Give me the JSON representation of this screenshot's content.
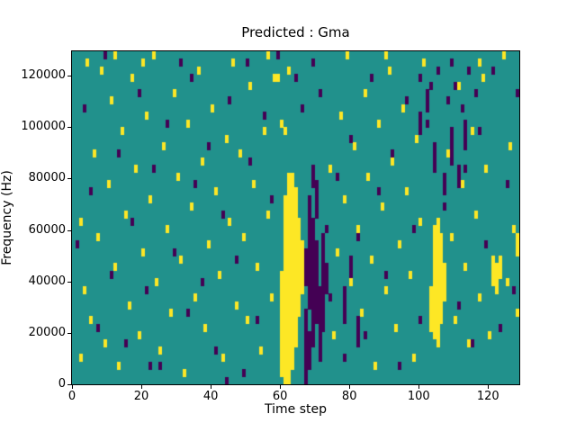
{
  "chart_data": {
    "type": "heatmap",
    "title": "Predicted : Gma",
    "xlabel": "Time step",
    "ylabel": "Frequency (Hz)",
    "legend": "none",
    "grid_lines": false,
    "x_range": [
      0,
      129
    ],
    "y_range_hz": [
      0,
      129500
    ],
    "x_tick_labels": [
      "0",
      "20",
      "40",
      "60",
      "80",
      "100",
      "120"
    ],
    "x_tick_values": [
      0,
      20,
      40,
      60,
      80,
      100,
      120
    ],
    "y_tick_labels": [
      "0",
      "20000",
      "40000",
      "60000",
      "80000",
      "100000",
      "120000"
    ],
    "y_tick_values": [
      0,
      20000,
      40000,
      60000,
      80000,
      100000,
      120000
    ],
    "grid": {
      "cols": 129,
      "rows": 44,
      "row_height_hz": 2943
    },
    "colors": {
      "background": "#21918c",
      "high": "#fde725",
      "low": "#440154"
    },
    "yellow_ranges": [
      [
        60,
        1,
        14
      ],
      [
        61,
        0,
        24
      ],
      [
        62,
        0,
        27
      ],
      [
        63,
        2,
        27
      ],
      [
        64,
        5,
        25
      ],
      [
        65,
        9,
        21
      ],
      [
        66,
        12,
        18
      ],
      [
        103,
        7,
        12
      ],
      [
        104,
        6,
        20
      ],
      [
        105,
        5,
        21
      ],
      [
        106,
        8,
        19
      ],
      [
        107,
        11,
        15
      ],
      [
        121,
        13,
        16
      ],
      [
        122,
        12,
        15
      ],
      [
        123,
        14,
        16
      ],
      [
        128,
        17,
        19
      ]
    ],
    "dark_ranges": [
      [
        67,
        1,
        9
      ],
      [
        67,
        13,
        17
      ],
      [
        68,
        2,
        6
      ],
      [
        68,
        10,
        24
      ],
      [
        69,
        5,
        21
      ],
      [
        70,
        8,
        18
      ],
      [
        70,
        22,
        26
      ],
      [
        71,
        3,
        12
      ],
      [
        72,
        7,
        19
      ],
      [
        73,
        12,
        15
      ],
      [
        69,
        26,
        28
      ],
      [
        104,
        28,
        31
      ],
      [
        107,
        25,
        27
      ],
      [
        109,
        29,
        33
      ],
      [
        111,
        26,
        28
      ],
      [
        113,
        31,
        34
      ],
      [
        100,
        33,
        35
      ],
      [
        102,
        36,
        38
      ],
      [
        78,
        8,
        12
      ],
      [
        80,
        13,
        16
      ],
      [
        82,
        5,
        8
      ]
    ],
    "yellow_cells": [
      [
        2,
        3
      ],
      [
        2,
        21
      ],
      [
        3,
        12
      ],
      [
        4,
        42
      ],
      [
        5,
        8
      ],
      [
        6,
        30
      ],
      [
        7,
        19
      ],
      [
        8,
        41
      ],
      [
        9,
        5
      ],
      [
        10,
        26
      ],
      [
        11,
        37
      ],
      [
        12,
        15
      ],
      [
        13,
        2
      ],
      [
        14,
        33
      ],
      [
        15,
        22
      ],
      [
        16,
        10
      ],
      [
        17,
        40
      ],
      [
        18,
        28
      ],
      [
        19,
        6
      ],
      [
        20,
        17
      ],
      [
        21,
        35
      ],
      [
        22,
        24
      ],
      [
        23,
        43
      ],
      [
        24,
        13
      ],
      [
        25,
        4
      ],
      [
        26,
        31
      ],
      [
        27,
        20
      ],
      [
        28,
        9
      ],
      [
        29,
        38
      ],
      [
        30,
        27
      ],
      [
        31,
        16
      ],
      [
        32,
        1
      ],
      [
        33,
        34
      ],
      [
        34,
        23
      ],
      [
        35,
        11
      ],
      [
        36,
        41
      ],
      [
        37,
        29
      ],
      [
        38,
        7
      ],
      [
        39,
        18
      ],
      [
        40,
        36
      ],
      [
        41,
        25
      ],
      [
        42,
        14
      ],
      [
        43,
        3
      ],
      [
        44,
        32
      ],
      [
        45,
        21
      ],
      [
        46,
        42
      ],
      [
        47,
        10
      ],
      [
        48,
        30
      ],
      [
        49,
        19
      ],
      [
        50,
        8
      ],
      [
        51,
        39
      ],
      [
        52,
        26
      ],
      [
        53,
        15
      ],
      [
        54,
        4
      ],
      [
        55,
        33
      ],
      [
        56,
        22
      ],
      [
        57,
        11
      ],
      [
        58,
        40
      ],
      [
        74,
        28
      ],
      [
        75,
        6
      ],
      [
        76,
        17
      ],
      [
        77,
        35
      ],
      [
        78,
        24
      ],
      [
        79,
        43
      ],
      [
        80,
        13
      ],
      [
        81,
        31
      ],
      [
        82,
        20
      ],
      [
        83,
        9
      ],
      [
        84,
        38
      ],
      [
        85,
        27
      ],
      [
        86,
        16
      ],
      [
        87,
        2
      ],
      [
        88,
        34
      ],
      [
        89,
        23
      ],
      [
        90,
        12
      ],
      [
        91,
        41
      ],
      [
        92,
        29
      ],
      [
        93,
        7
      ],
      [
        94,
        18
      ],
      [
        95,
        36
      ],
      [
        96,
        25
      ],
      [
        97,
        14
      ],
      [
        98,
        3
      ],
      [
        99,
        32
      ],
      [
        100,
        21
      ],
      [
        101,
        42
      ],
      [
        108,
        30
      ],
      [
        109,
        19
      ],
      [
        110,
        8
      ],
      [
        111,
        39
      ],
      [
        112,
        26
      ],
      [
        113,
        15
      ],
      [
        114,
        5
      ],
      [
        115,
        33
      ],
      [
        116,
        22
      ],
      [
        117,
        11
      ],
      [
        118,
        40
      ],
      [
        119,
        28
      ],
      [
        120,
        6
      ],
      [
        124,
        43
      ],
      [
        125,
        13
      ],
      [
        126,
        31
      ],
      [
        127,
        20
      ],
      [
        128,
        9
      ],
      [
        60,
        34
      ],
      [
        61,
        33
      ],
      [
        59,
        40
      ],
      [
        62,
        41
      ],
      [
        12,
        43
      ],
      [
        20,
        42
      ],
      [
        56,
        43
      ],
      [
        90,
        43
      ],
      [
        117,
        42
      ]
    ],
    "dark_cells": [
      [
        1,
        18
      ],
      [
        3,
        36
      ],
      [
        5,
        25
      ],
      [
        7,
        7
      ],
      [
        9,
        43
      ],
      [
        11,
        14
      ],
      [
        13,
        30
      ],
      [
        15,
        5
      ],
      [
        17,
        21
      ],
      [
        19,
        38
      ],
      [
        21,
        12
      ],
      [
        23,
        28
      ],
      [
        25,
        2
      ],
      [
        27,
        34
      ],
      [
        29,
        17
      ],
      [
        31,
        42
      ],
      [
        33,
        9
      ],
      [
        35,
        26
      ],
      [
        37,
        13
      ],
      [
        39,
        31
      ],
      [
        41,
        4
      ],
      [
        43,
        22
      ],
      [
        45,
        37
      ],
      [
        47,
        16
      ],
      [
        49,
        1
      ],
      [
        51,
        29
      ],
      [
        53,
        8
      ],
      [
        55,
        35
      ],
      [
        57,
        24
      ],
      [
        59,
        43
      ],
      [
        74,
        11
      ],
      [
        76,
        27
      ],
      [
        78,
        3
      ],
      [
        80,
        32
      ],
      [
        82,
        19
      ],
      [
        84,
        6
      ],
      [
        86,
        40
      ],
      [
        88,
        25
      ],
      [
        90,
        14
      ],
      [
        92,
        30
      ],
      [
        94,
        2
      ],
      [
        96,
        37
      ],
      [
        98,
        20
      ],
      [
        100,
        8
      ],
      [
        102,
        34
      ],
      [
        107,
        23
      ],
      [
        109,
        42
      ],
      [
        111,
        10
      ],
      [
        113,
        28
      ],
      [
        115,
        5
      ],
      [
        117,
        33
      ],
      [
        119,
        18
      ],
      [
        121,
        41
      ],
      [
        123,
        7
      ],
      [
        125,
        26
      ],
      [
        127,
        12
      ],
      [
        128,
        38
      ],
      [
        100,
        40
      ],
      [
        103,
        39
      ],
      [
        105,
        41
      ],
      [
        108,
        37
      ],
      [
        110,
        39
      ],
      [
        112,
        36
      ],
      [
        114,
        41
      ],
      [
        116,
        38
      ],
      [
        67,
        0
      ],
      [
        73,
        20
      ],
      [
        71,
        38
      ],
      [
        69,
        42
      ],
      [
        44,
        0
      ],
      [
        22,
        2
      ],
      [
        64,
        40
      ],
      [
        66,
        36
      ],
      [
        34,
        40
      ],
      [
        50,
        42
      ]
    ]
  }
}
